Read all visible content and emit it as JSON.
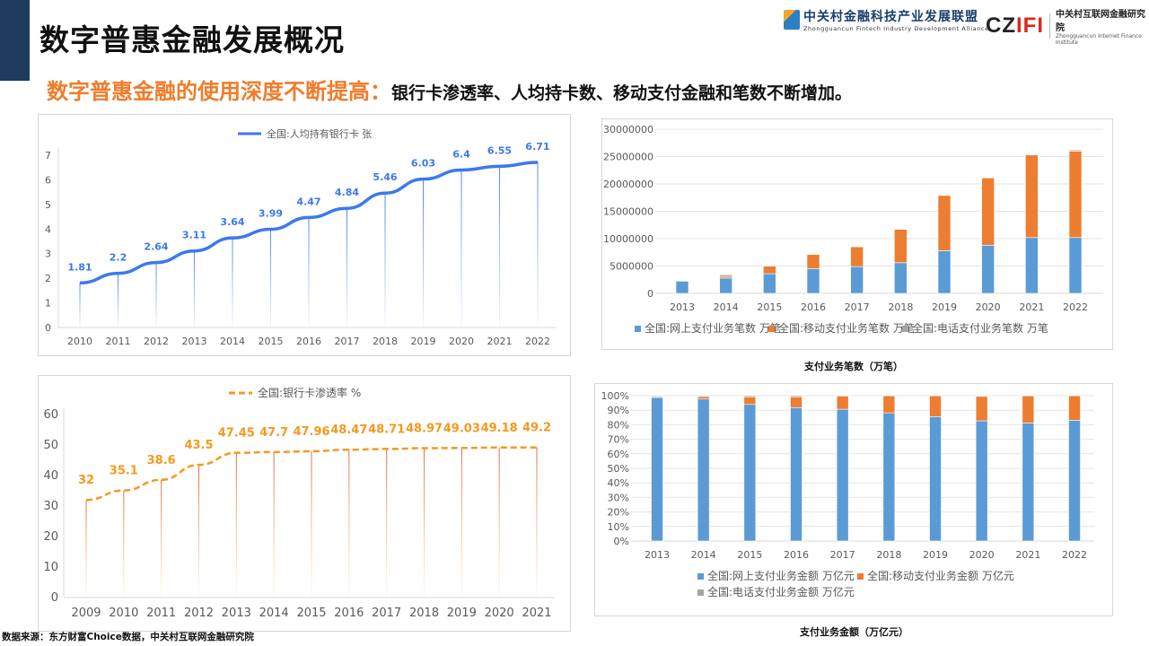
{
  "header": {
    "title": "数字普惠金融发展概况",
    "subtitle_highlight": "数字普惠金融的使用深度不断提高：",
    "subtitle_rest": "银行卡渗透率、人均持卡数、移动支付金融和笔数不断增加。"
  },
  "logos": {
    "alliance_cn": "中关村金融科技产业发展联盟",
    "alliance_en": "Zhongguancun Fintech Industry Development Alliance",
    "institute_mark": "CZIFI",
    "institute_cn": "中关村互联网金融研究院",
    "institute_en": "Zhongguancun Internet Finance Institute"
  },
  "footer": {
    "source": "数据来源：东方财富Choice数据，中关村互联网金融研究院"
  },
  "colors": {
    "blue_line": "#3c78f0",
    "orange_line": "#f7981d",
    "online": "#5b9bd5",
    "mobile": "#ed7d31",
    "phone": "#a5a5a5"
  },
  "chart_data": [
    {
      "type": "line",
      "categories": [
        "2010",
        "2011",
        "2012",
        "2013",
        "2014",
        "2015",
        "2016",
        "2017",
        "2018",
        "2019",
        "2020",
        "2021",
        "2022"
      ],
      "series": [
        {
          "name": "全国:人均持有银行卡 张",
          "values": [
            1.81,
            2.2,
            2.64,
            3.11,
            3.64,
            3.99,
            4.47,
            4.84,
            5.46,
            6.03,
            6.4,
            6.55,
            6.71
          ],
          "color": "#3c78f0"
        }
      ],
      "ylim": [
        0,
        7
      ],
      "yticks": [
        "0",
        "1",
        "2",
        "3",
        "4",
        "5",
        "6",
        "7"
      ],
      "data_labels": true,
      "line_style": "solid",
      "legend": "top",
      "grid": false
    },
    {
      "type": "line",
      "categories": [
        "2009",
        "2010",
        "2011",
        "2012",
        "2013",
        "2014",
        "2015",
        "2016",
        "2017",
        "2018",
        "2019",
        "2020",
        "2021"
      ],
      "series": [
        {
          "name": "全国:银行卡渗透率 %",
          "values": [
            32,
            35.1,
            38.6,
            43.5,
            47.45,
            47.7,
            47.96,
            48.47,
            48.71,
            48.97,
            49.03,
            49.18,
            49.2
          ],
          "color": "#f7981d"
        }
      ],
      "ylim": [
        0,
        60
      ],
      "yticks": [
        "0",
        "10",
        "20",
        "30",
        "40",
        "50",
        "60"
      ],
      "data_labels": true,
      "line_style": "dashed",
      "legend": "top",
      "grid": false
    },
    {
      "type": "bar",
      "stacked": true,
      "title": "支付业务笔数（万笔）",
      "categories": [
        "2013",
        "2014",
        "2015",
        "2016",
        "2017",
        "2018",
        "2019",
        "2020",
        "2021",
        "2022"
      ],
      "series": [
        {
          "name": "全国:网上支付业务笔数 万笔",
          "values": [
            2240000,
            2800000,
            3600000,
            4500000,
            4900000,
            5600000,
            7800000,
            8800000,
            10200000,
            10200000
          ],
          "color": "#5b9bd5"
        },
        {
          "name": "全国:移动支付业务笔数 万笔",
          "values": [
            50000,
            300000,
            1400000,
            2600000,
            3600000,
            6100000,
            10100000,
            12300000,
            15100000,
            15800000
          ],
          "color": "#ed7d31"
        },
        {
          "name": "全国:电话支付业务笔数 万笔",
          "values": [
            50000,
            300000,
            100000,
            50000,
            50000,
            30000,
            30000,
            30000,
            30000,
            200000
          ],
          "color": "#a5a5a5"
        }
      ],
      "ylim": [
        0,
        30000000
      ],
      "yticks": [
        "0",
        "5000000",
        "10000000",
        "15000000",
        "20000000",
        "25000000",
        "30000000"
      ],
      "legend": "bottom",
      "grid": true
    },
    {
      "type": "bar",
      "stacked": true,
      "percent": true,
      "title": "支付业务金额（万亿元）",
      "categories": [
        "2013",
        "2014",
        "2015",
        "2016",
        "2017",
        "2018",
        "2019",
        "2020",
        "2021",
        "2022"
      ],
      "series": [
        {
          "name": "全国:网上支付业务金额 万亿元",
          "values": [
            98.8,
            97.7,
            94.0,
            91.8,
            90.7,
            88.2,
            85.6,
            82.7,
            81.2,
            83.1
          ],
          "color": "#5b9bd5"
        },
        {
          "name": "全国:移动支付业务金额 万亿元",
          "values": [
            0.6,
            1.7,
            5.0,
            7.2,
            9.1,
            11.7,
            14.3,
            16.8,
            18.7,
            16.8
          ],
          "color": "#ed7d31"
        },
        {
          "name": "全国:电话支付业务金额 万亿元",
          "values": [
            0.6,
            0.6,
            1.0,
            1.0,
            0.2,
            0.1,
            0.1,
            0.5,
            0.1,
            0.1
          ],
          "color": "#a5a5a5"
        }
      ],
      "ylim": [
        0,
        100
      ],
      "yticks": [
        "0%",
        "10%",
        "20%",
        "30%",
        "40%",
        "50%",
        "60%",
        "70%",
        "80%",
        "90%",
        "100%"
      ],
      "legend": "bottom",
      "grid": true
    }
  ]
}
